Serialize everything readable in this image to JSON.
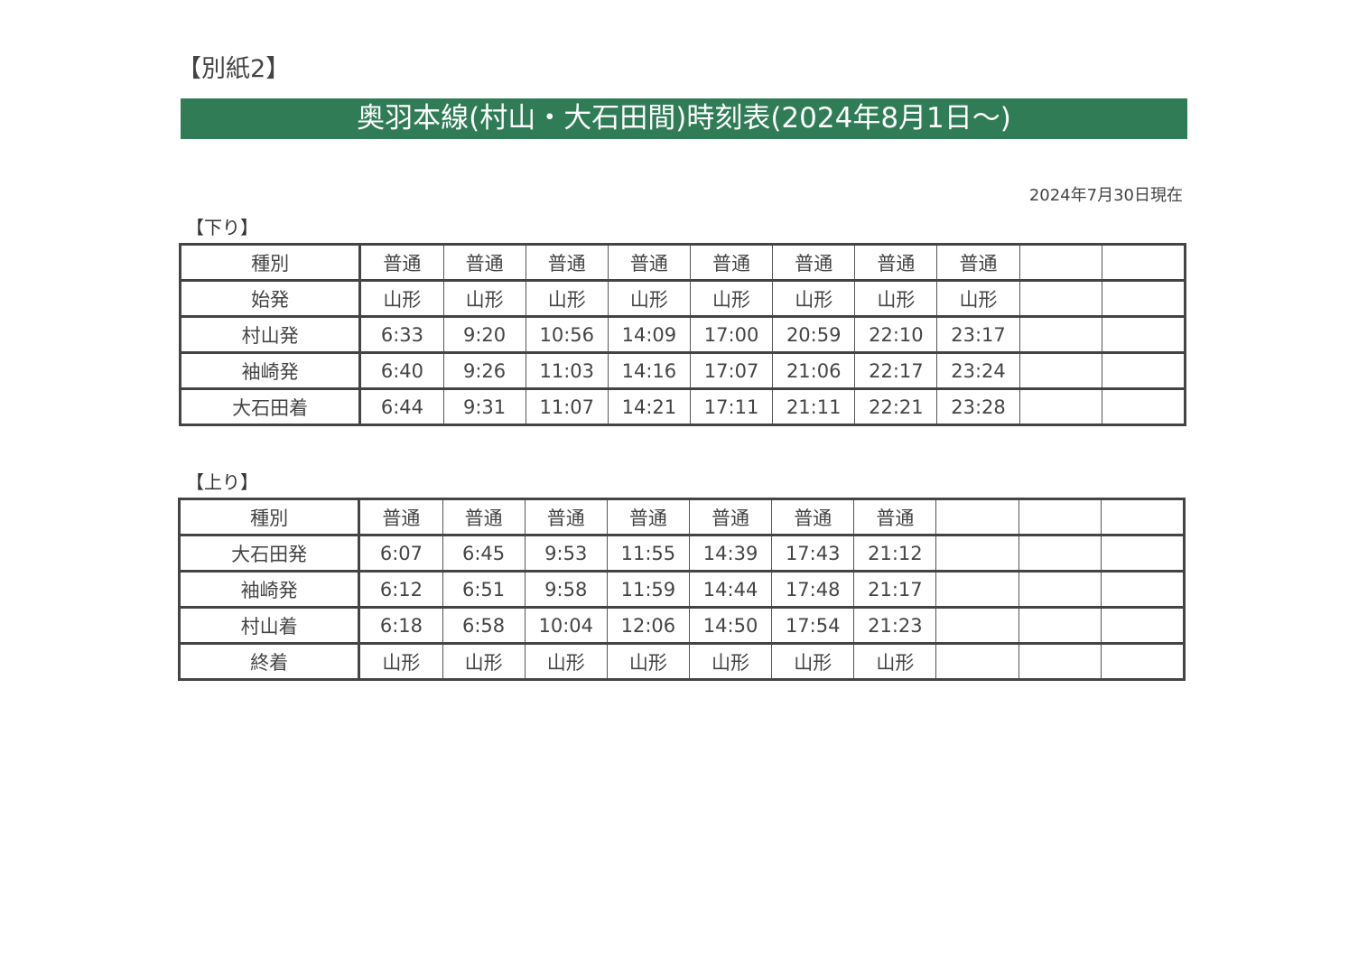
{
  "annex_label": "【別紙2】",
  "title": "奥羽本線(村山・大石田間)時刻表(2024年8月1日～)",
  "as_of": "2024年7月30日現在",
  "down": {
    "label": "【下り】",
    "rows": [
      {
        "header": "種別",
        "cells": [
          "普通",
          "普通",
          "普通",
          "普通",
          "普通",
          "普通",
          "普通",
          "普通",
          "",
          ""
        ]
      },
      {
        "header": "始発",
        "cells": [
          "山形",
          "山形",
          "山形",
          "山形",
          "山形",
          "山形",
          "山形",
          "山形",
          "",
          ""
        ]
      },
      {
        "header": "村山発",
        "cells": [
          "6:33",
          "9:20",
          "10:56",
          "14:09",
          "17:00",
          "20:59",
          "22:10",
          "23:17",
          "",
          ""
        ]
      },
      {
        "header": "袖崎発",
        "cells": [
          "6:40",
          "9:26",
          "11:03",
          "14:16",
          "17:07",
          "21:06",
          "22:17",
          "23:24",
          "",
          ""
        ]
      },
      {
        "header": "大石田着",
        "cells": [
          "6:44",
          "9:31",
          "11:07",
          "14:21",
          "17:11",
          "21:11",
          "22:21",
          "23:28",
          "",
          ""
        ]
      }
    ]
  },
  "up": {
    "label": "【上り】",
    "rows": [
      {
        "header": "種別",
        "cells": [
          "普通",
          "普通",
          "普通",
          "普通",
          "普通",
          "普通",
          "普通",
          "",
          "",
          ""
        ]
      },
      {
        "header": "大石田発",
        "cells": [
          "6:07",
          "6:45",
          "9:53",
          "11:55",
          "14:39",
          "17:43",
          "21:12",
          "",
          "",
          ""
        ]
      },
      {
        "header": "袖崎発",
        "cells": [
          "6:12",
          "6:51",
          "9:58",
          "11:59",
          "14:44",
          "17:48",
          "21:17",
          "",
          "",
          ""
        ]
      },
      {
        "header": "村山着",
        "cells": [
          "6:18",
          "6:58",
          "10:04",
          "12:06",
          "14:50",
          "17:54",
          "21:23",
          "",
          "",
          ""
        ]
      },
      {
        "header": "終着",
        "cells": [
          "山形",
          "山形",
          "山形",
          "山形",
          "山形",
          "山形",
          "山形",
          "",
          "",
          ""
        ]
      }
    ]
  }
}
